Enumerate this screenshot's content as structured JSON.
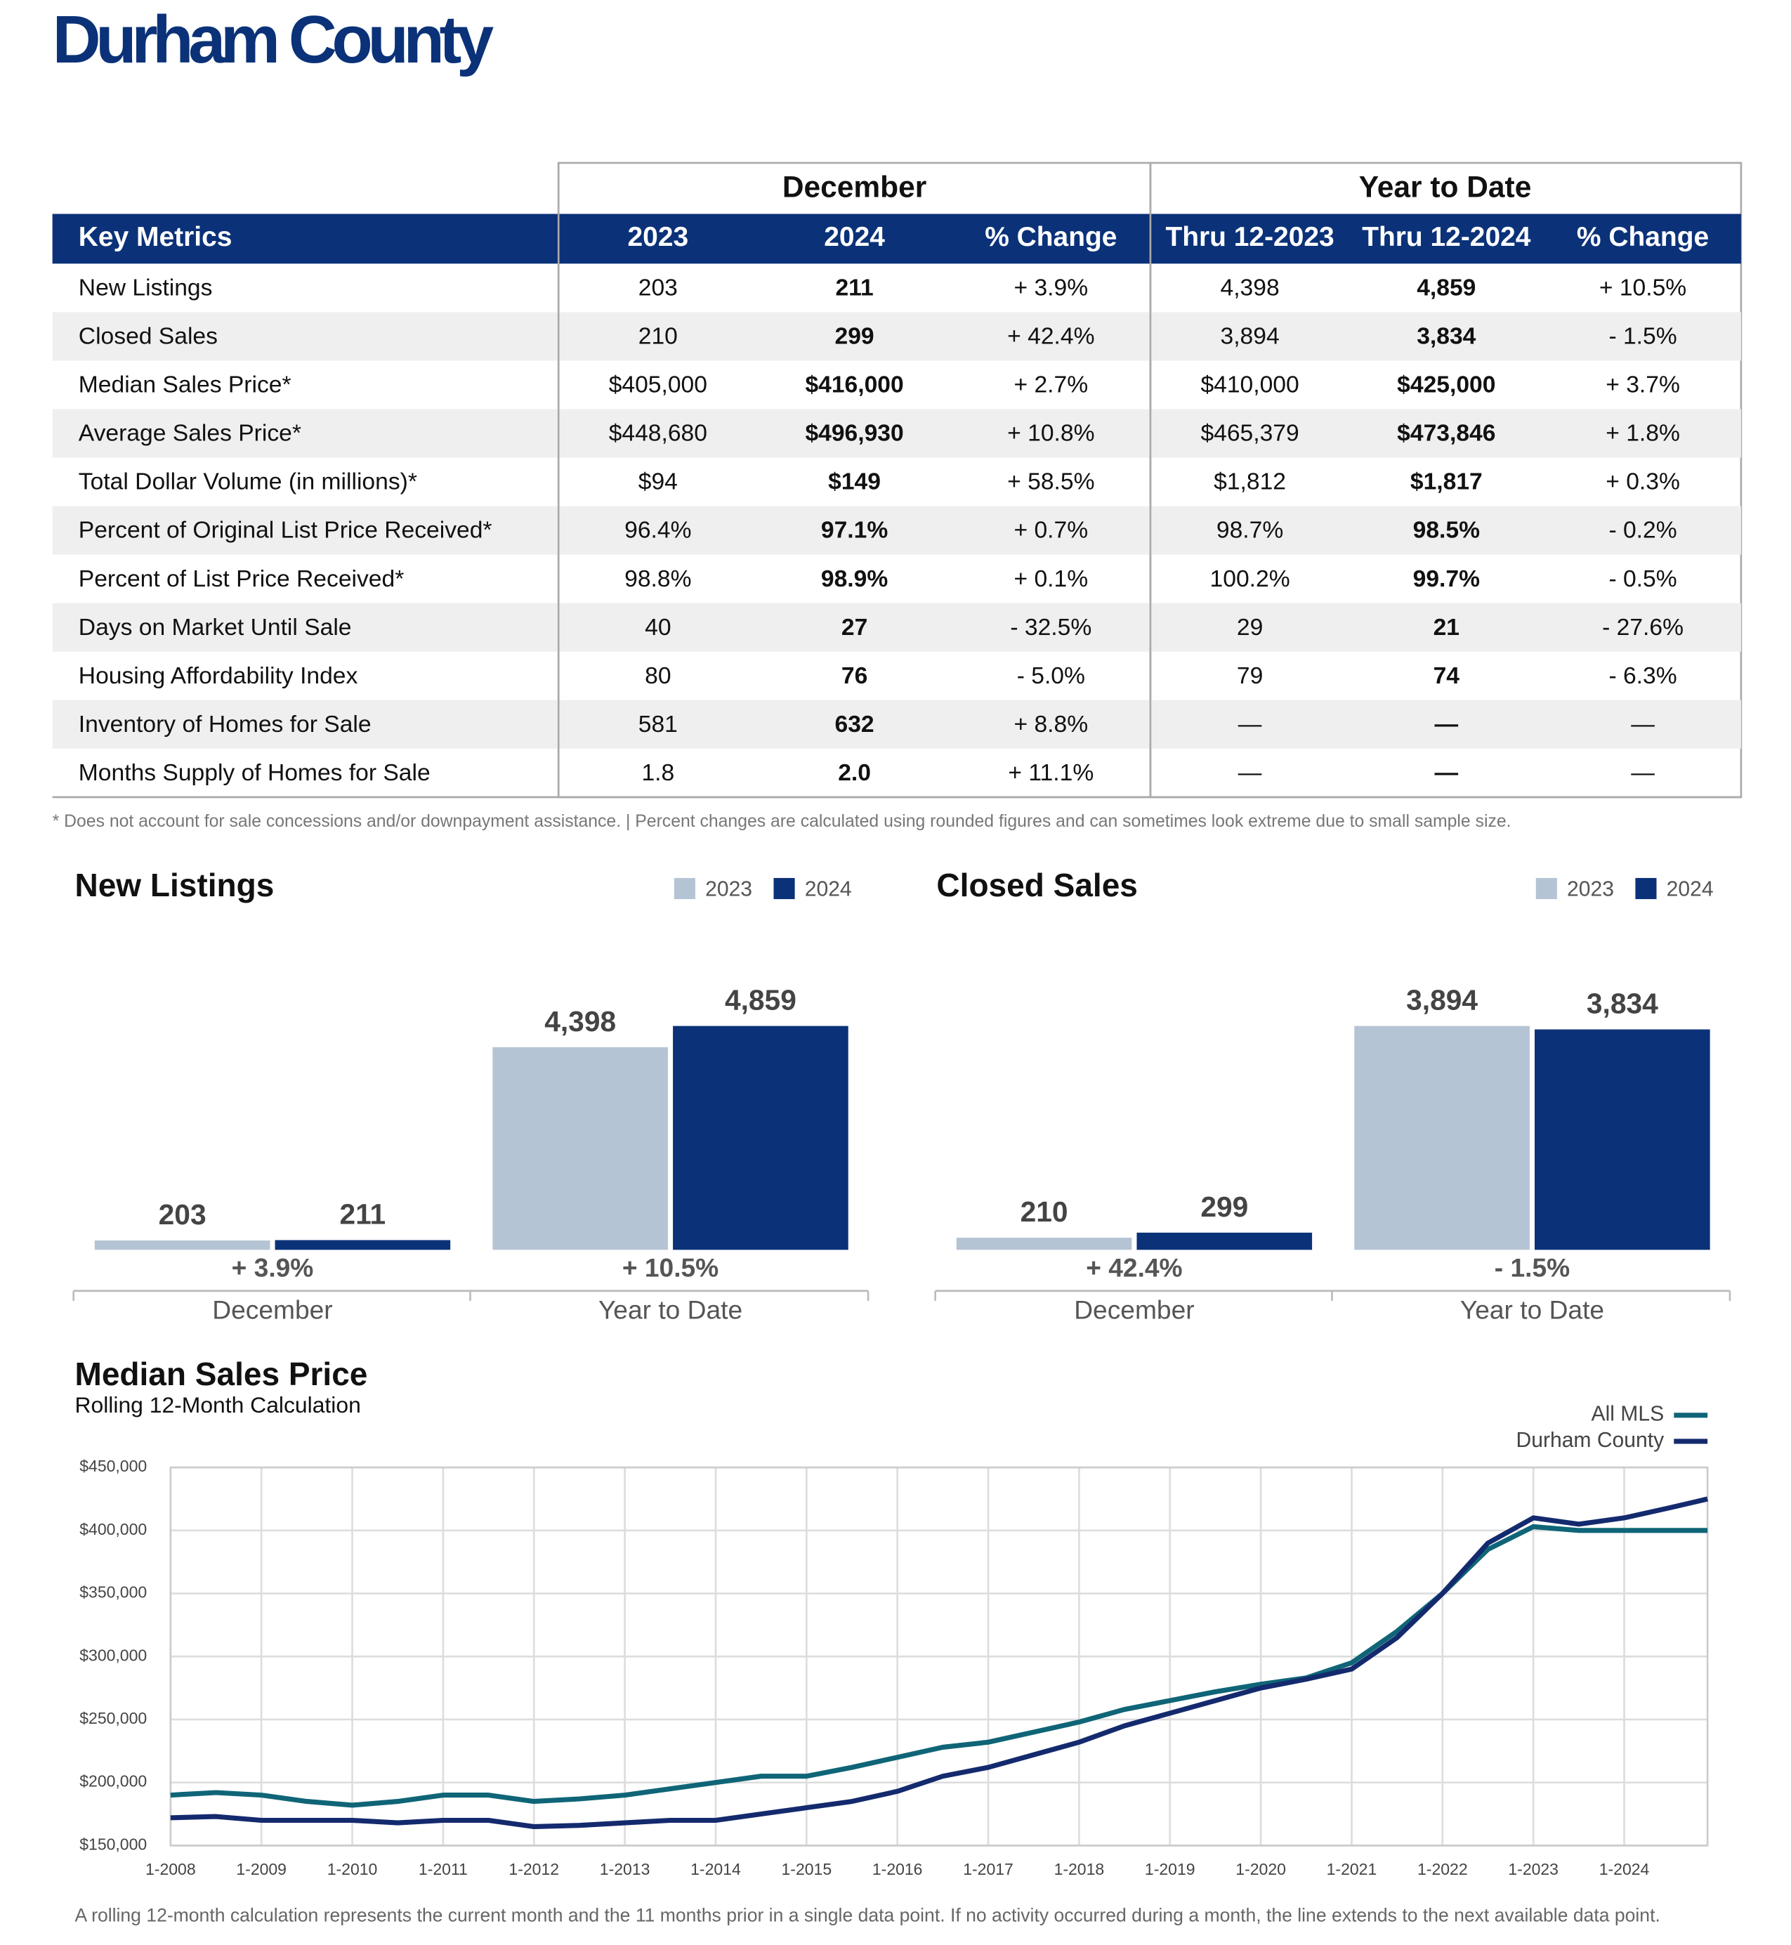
{
  "header": {
    "title": "Durham County"
  },
  "table": {
    "groups": [
      "December",
      "Year to Date"
    ],
    "columns": [
      "Key Metrics",
      "2023",
      "2024",
      "% Change",
      "Thru 12-2023",
      "Thru 12-2024",
      "% Change"
    ],
    "rows": [
      [
        "New Listings",
        "203",
        "211",
        "+ 3.9%",
        "4,398",
        "4,859",
        "+ 10.5%"
      ],
      [
        "Closed Sales",
        "210",
        "299",
        "+ 42.4%",
        "3,894",
        "3,834",
        "- 1.5%"
      ],
      [
        "Median Sales Price*",
        "$405,000",
        "$416,000",
        "+ 2.7%",
        "$410,000",
        "$425,000",
        "+ 3.7%"
      ],
      [
        "Average Sales Price*",
        "$448,680",
        "$496,930",
        "+ 10.8%",
        "$465,379",
        "$473,846",
        "+ 1.8%"
      ],
      [
        "Total Dollar Volume (in millions)*",
        "$94",
        "$149",
        "+ 58.5%",
        "$1,812",
        "$1,817",
        "+ 0.3%"
      ],
      [
        "Percent of Original List Price Received*",
        "96.4%",
        "97.1%",
        "+ 0.7%",
        "98.7%",
        "98.5%",
        "- 0.2%"
      ],
      [
        "Percent of List Price Received*",
        "98.8%",
        "98.9%",
        "+ 0.1%",
        "100.2%",
        "99.7%",
        "- 0.5%"
      ],
      [
        "Days on Market Until Sale",
        "40",
        "27",
        "- 32.5%",
        "29",
        "21",
        "- 27.6%"
      ],
      [
        "Housing Affordability Index",
        "80",
        "76",
        "- 5.0%",
        "79",
        "74",
        "- 6.3%"
      ],
      [
        "Inventory of Homes for Sale",
        "581",
        "632",
        "+ 8.8%",
        "—",
        "—",
        "—"
      ],
      [
        "Months Supply of Homes for Sale",
        "1.8",
        "2.0",
        "+ 11.1%",
        "—",
        "—",
        "—"
      ]
    ],
    "footnote": "* Does not account for sale concessions and/or downpayment assistance. | Percent changes are calculated using rounded figures and can sometimes look extreme due to small sample size."
  },
  "chart_data": [
    {
      "type": "bar",
      "title": "New Listings",
      "categories": [
        "December",
        "Year to Date"
      ],
      "changes": [
        "+ 3.9%",
        "+ 10.5%"
      ],
      "series": [
        {
          "name": "2023",
          "color": "#b5c4d4",
          "values": [
            203,
            4398
          ],
          "value_labels": [
            "203",
            "4,398"
          ]
        },
        {
          "name": "2024",
          "color": "#0b3278",
          "values": [
            211,
            4859
          ],
          "value_labels": [
            "211",
            "4,859"
          ]
        }
      ]
    },
    {
      "type": "bar",
      "title": "Closed Sales",
      "categories": [
        "December",
        "Year to Date"
      ],
      "changes": [
        "+ 42.4%",
        "- 1.5%"
      ],
      "series": [
        {
          "name": "2023",
          "color": "#b5c4d4",
          "values": [
            210,
            3894
          ],
          "value_labels": [
            "210",
            "3,894"
          ]
        },
        {
          "name": "2024",
          "color": "#0b3278",
          "values": [
            299,
            3834
          ],
          "value_labels": [
            "299",
            "3,834"
          ]
        }
      ]
    },
    {
      "type": "line",
      "title": "Median Sales Price",
      "subtitle": "Rolling 12-Month Calculation",
      "note": "A rolling 12-month calculation represents the current month and the 11 months prior in a single data point. If no activity occurred during a month, the line extends to the next available data point.",
      "x": [
        "1-2008",
        "7-2008",
        "1-2009",
        "7-2009",
        "1-2010",
        "7-2010",
        "1-2011",
        "7-2011",
        "1-2012",
        "7-2012",
        "1-2013",
        "7-2013",
        "1-2014",
        "7-2014",
        "1-2015",
        "7-2015",
        "1-2016",
        "7-2016",
        "1-2017",
        "7-2017",
        "1-2018",
        "7-2018",
        "1-2019",
        "7-2019",
        "1-2020",
        "7-2020",
        "1-2021",
        "7-2021",
        "1-2022",
        "7-2022",
        "1-2023",
        "7-2023",
        "1-2024",
        "7-2024",
        "12-2024"
      ],
      "series": [
        {
          "name": "All MLS",
          "color": "#0f6577",
          "values": [
            190000,
            192000,
            190000,
            185000,
            182000,
            185000,
            190000,
            190000,
            185000,
            187000,
            190000,
            195000,
            200000,
            205000,
            205000,
            212000,
            220000,
            228000,
            232000,
            240000,
            248000,
            258000,
            265000,
            272000,
            278000,
            283000,
            295000,
            320000,
            350000,
            385000,
            403000,
            400000,
            400000,
            400000,
            400000
          ]
        },
        {
          "name": "Durham County",
          "color": "#142a6e",
          "values": [
            172000,
            173000,
            170000,
            170000,
            170000,
            168000,
            170000,
            170000,
            165000,
            166000,
            168000,
            170000,
            170000,
            175000,
            180000,
            185000,
            193000,
            205000,
            212000,
            222000,
            232000,
            245000,
            255000,
            265000,
            275000,
            282000,
            290000,
            315000,
            350000,
            390000,
            410000,
            405000,
            410000,
            418000,
            425000
          ]
        }
      ],
      "xlim": [
        "1-2008",
        "12-2024"
      ],
      "xticks": [
        "1-2008",
        "1-2009",
        "1-2010",
        "1-2011",
        "1-2012",
        "1-2013",
        "1-2014",
        "1-2015",
        "1-2016",
        "1-2017",
        "1-2018",
        "1-2019",
        "1-2020",
        "1-2021",
        "1-2022",
        "1-2023",
        "1-2024"
      ],
      "ylim": [
        150000,
        450000
      ],
      "yticks": [
        {
          "value": 150000,
          "label": "$150,000"
        },
        {
          "value": 200000,
          "label": "$200,000"
        },
        {
          "value": 250000,
          "label": "$250,000"
        },
        {
          "value": 300000,
          "label": "$300,000"
        },
        {
          "value": 350000,
          "label": "$350,000"
        },
        {
          "value": 400000,
          "label": "$400,000"
        },
        {
          "value": 450000,
          "label": "$450,000"
        }
      ],
      "grid": true
    }
  ]
}
